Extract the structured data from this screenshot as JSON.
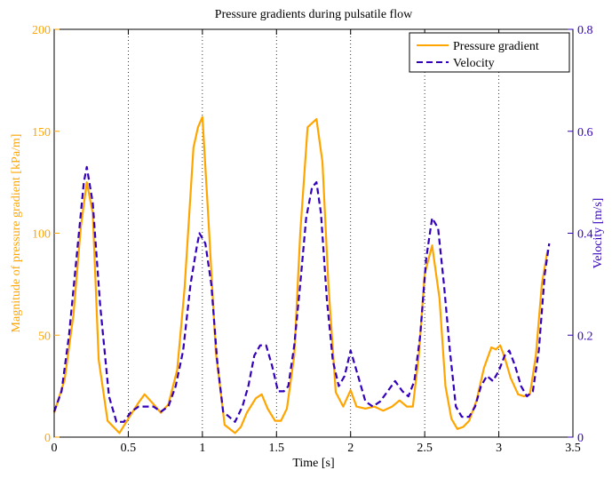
{
  "chart_data": {
    "type": "line",
    "title": "Pressure gradients during pulsatile flow",
    "xlabel": "Time [s]",
    "ylabel_left": "Magnitude of pressure gradient [kPa/m]",
    "ylabel_right": "Velocity [m/s]",
    "xlim": [
      0,
      3.5
    ],
    "ylim_left": [
      0,
      200
    ],
    "ylim_right": [
      0,
      0.8
    ],
    "x_ticks": [
      0,
      0.5,
      1,
      1.5,
      2,
      2.5,
      3,
      3.5
    ],
    "x_tick_labels": [
      "0",
      "0.5",
      "1",
      "1.5",
      "2",
      "2.5",
      "3",
      "3.5"
    ],
    "y_left_ticks": [
      0,
      50,
      100,
      150,
      200
    ],
    "y_left_tick_labels": [
      "0",
      "50",
      "100",
      "150",
      "200"
    ],
    "y_right_ticks": [
      0,
      0.2,
      0.4,
      0.6,
      0.8
    ],
    "y_right_tick_labels": [
      "0",
      "0.2",
      "0.4",
      "0.6",
      "0.8"
    ],
    "grid": "vertical dotted",
    "legend_position": "top-right",
    "colors": {
      "pressure": "#FFA500",
      "velocity": "#3300BB",
      "axes": "#000000"
    },
    "series": [
      {
        "name": "Pressure gradient",
        "axis": "left",
        "style": "solid",
        "x": [
          0,
          0.07,
          0.13,
          0.18,
          0.22,
          0.26,
          0.3,
          0.36,
          0.44,
          0.5,
          0.57,
          0.61,
          0.66,
          0.72,
          0.77,
          0.83,
          0.88,
          0.94,
          0.97,
          1.0,
          1.04,
          1.09,
          1.15,
          1.22,
          1.26,
          1.3,
          1.36,
          1.4,
          1.44,
          1.49,
          1.53,
          1.57,
          1.62,
          1.66,
          1.71,
          1.77,
          1.81,
          1.85,
          1.9,
          1.95,
          2.0,
          2.04,
          2.1,
          2.16,
          2.22,
          2.28,
          2.33,
          2.38,
          2.42,
          2.46,
          2.5,
          2.55,
          2.6,
          2.64,
          2.68,
          2.72,
          2.76,
          2.8,
          2.85,
          2.9,
          2.95,
          2.98,
          3.01,
          3.04,
          3.08,
          3.13,
          3.17,
          3.21,
          3.25,
          3.29,
          3.33
        ],
        "values": [
          12,
          28,
          60,
          103,
          125,
          110,
          38,
          8,
          2,
          9,
          17,
          21,
          17,
          12,
          16,
          33,
          73,
          142,
          152,
          157,
          108,
          42,
          6,
          2,
          5,
          12,
          19,
          21,
          14,
          8,
          8,
          14,
          40,
          100,
          152,
          156,
          135,
          75,
          22,
          15,
          23,
          15,
          14,
          15,
          13,
          15,
          18,
          15,
          15,
          40,
          80,
          94,
          68,
          25,
          9,
          4,
          5,
          8,
          18,
          34,
          44,
          43,
          45,
          39,
          29,
          21,
          20,
          21,
          40,
          75,
          92
        ]
      },
      {
        "name": "Velocity",
        "axis": "right",
        "style": "dashed",
        "x": [
          0,
          0.05,
          0.1,
          0.16,
          0.2,
          0.22,
          0.26,
          0.31,
          0.37,
          0.42,
          0.47,
          0.52,
          0.57,
          0.62,
          0.67,
          0.72,
          0.77,
          0.82,
          0.87,
          0.92,
          0.96,
          0.98,
          1.02,
          1.06,
          1.1,
          1.14,
          1.18,
          1.22,
          1.27,
          1.31,
          1.35,
          1.39,
          1.43,
          1.47,
          1.51,
          1.55,
          1.58,
          1.62,
          1.66,
          1.7,
          1.74,
          1.77,
          1.8,
          1.84,
          1.88,
          1.92,
          1.96,
          2.0,
          2.05,
          2.1,
          2.15,
          2.2,
          2.25,
          2.3,
          2.35,
          2.39,
          2.43,
          2.47,
          2.51,
          2.55,
          2.59,
          2.63,
          2.67,
          2.71,
          2.75,
          2.8,
          2.84,
          2.88,
          2.92,
          2.96,
          3.0,
          3.04,
          3.07,
          3.11,
          3.15,
          3.19,
          3.23,
          3.27,
          3.31,
          3.34
        ],
        "values": [
          0.05,
          0.09,
          0.2,
          0.38,
          0.5,
          0.53,
          0.46,
          0.26,
          0.08,
          0.03,
          0.03,
          0.05,
          0.06,
          0.06,
          0.06,
          0.05,
          0.06,
          0.1,
          0.17,
          0.3,
          0.37,
          0.4,
          0.38,
          0.3,
          0.15,
          0.05,
          0.04,
          0.03,
          0.06,
          0.1,
          0.16,
          0.18,
          0.18,
          0.14,
          0.09,
          0.09,
          0.1,
          0.18,
          0.3,
          0.43,
          0.49,
          0.5,
          0.44,
          0.27,
          0.15,
          0.1,
          0.12,
          0.17,
          0.12,
          0.07,
          0.06,
          0.07,
          0.09,
          0.11,
          0.09,
          0.08,
          0.11,
          0.2,
          0.35,
          0.43,
          0.41,
          0.3,
          0.17,
          0.06,
          0.04,
          0.04,
          0.06,
          0.1,
          0.12,
          0.11,
          0.13,
          0.16,
          0.17,
          0.14,
          0.1,
          0.08,
          0.09,
          0.17,
          0.32,
          0.38
        ]
      }
    ]
  }
}
